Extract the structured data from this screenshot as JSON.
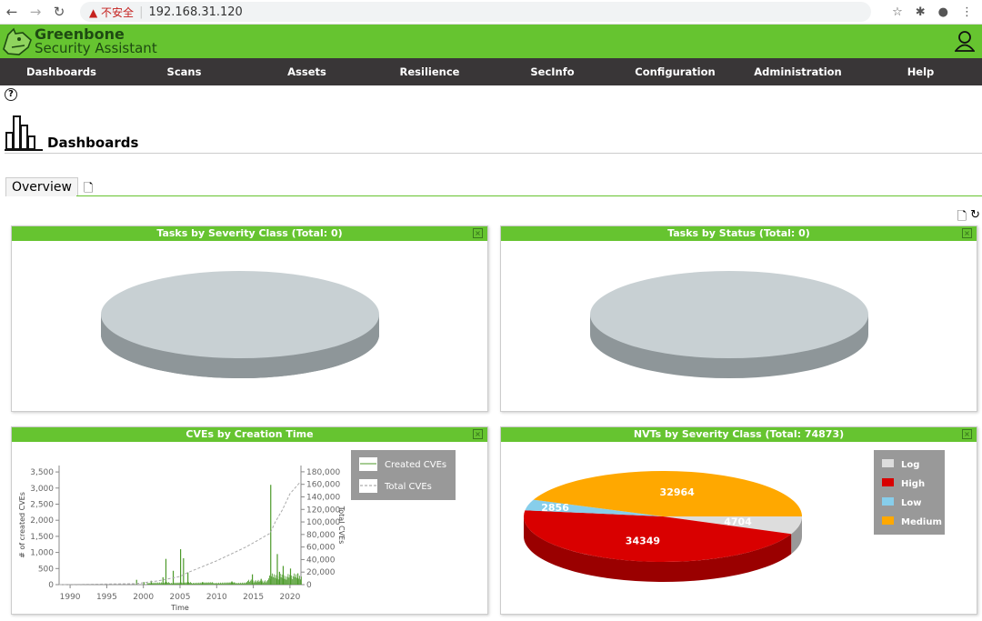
{
  "browser": {
    "security": "不安全",
    "url": "192.168.31.120"
  },
  "app": {
    "brand1": "Greenbone",
    "brand2": "Security Assistant"
  },
  "nav": [
    "Dashboards",
    "Scans",
    "Assets",
    "Resilience",
    "SecInfo",
    "Configuration",
    "Administration",
    "Help"
  ],
  "page": {
    "help": "?",
    "title": "Dashboards",
    "tab": "Overview"
  },
  "panels": {
    "p1": "Tasks by Severity Class (Total: 0)",
    "p2": "Tasks by Status (Total: 0)",
    "p3": "CVEs by Creation Time",
    "p4": "NVTs by Severity Class (Total: 74873)"
  },
  "chart_data": [
    {
      "type": "pie",
      "title": "Tasks by Severity Class (Total: 0)",
      "values": []
    },
    {
      "type": "pie",
      "title": "Tasks by Status (Total: 0)",
      "values": []
    },
    {
      "type": "bar+line",
      "title": "CVEs by Creation Time",
      "xlabel": "Time",
      "ylabel": "# of created CVEs",
      "y2label": "Total CVEs",
      "xticks": [
        "1990",
        "1995",
        "2000",
        "2005",
        "2010",
        "2015",
        "2020"
      ],
      "yticks": [
        "0",
        "500",
        "1,000",
        "1,500",
        "2,000",
        "2,500",
        "3,000",
        "3,500"
      ],
      "y2ticks": [
        "0",
        "20,000",
        "40,000",
        "60,000",
        "80,000",
        "100,000",
        "120,000",
        "140,000",
        "160,000",
        "180,000"
      ],
      "ylim": [
        0,
        3700
      ],
      "y2lim": [
        0,
        190000
      ],
      "xlim": [
        1988.5,
        2021.5
      ],
      "series": [
        {
          "name": "Created CVEs",
          "x": [
            1999,
            2000,
            2001,
            2002.6,
            2003,
            2004,
            2005,
            2005.4,
            2006,
            2008,
            2012,
            2014.8,
            2016,
            2017.3,
            2018.2,
            2018.5,
            2019,
            2020,
            2021
          ],
          "values": [
            150,
            80,
            120,
            230,
            800,
            430,
            1100,
            820,
            380,
            80,
            100,
            320,
            180,
            3100,
            950,
            400,
            580,
            500,
            350
          ]
        },
        {
          "name": "Total CVEs",
          "x": [
            1988.5,
            1999,
            2002,
            2005,
            2006,
            2010,
            2014,
            2017.3,
            2018,
            2019,
            2020,
            2021.5
          ],
          "values": [
            0,
            1500,
            6000,
            13000,
            19000,
            38000,
            60000,
            82000,
            100000,
            120000,
            145000,
            165000
          ]
        }
      ],
      "legend": "right"
    },
    {
      "type": "pie",
      "title": "NVTs by Severity Class (Total: 74873)",
      "legend": "right",
      "slices": [
        {
          "name": "Log",
          "value": 4704,
          "color": "#dddddd",
          "dark": "#999999"
        },
        {
          "name": "High",
          "value": 34349,
          "color": "#d90000",
          "dark": "#9a0000"
        },
        {
          "name": "Low",
          "value": 2856,
          "color": "#87ceeb",
          "dark": "#5f9fb5"
        },
        {
          "name": "Medium",
          "value": 32964,
          "color": "#ffa800",
          "dark": "#c07f00"
        }
      ]
    }
  ]
}
